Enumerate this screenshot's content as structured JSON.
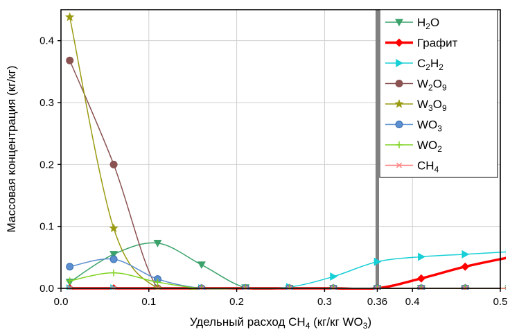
{
  "chart_data": {
    "type": "line",
    "title": "",
    "xlabel": {
      "main": "Удельный расход CH",
      "sub1": "4",
      "mid": " (кг/кг WO",
      "sub2": "3",
      "end": ")"
    },
    "ylabel": "Массовая концентрация (кг/кг)",
    "xlim": [
      0.0,
      0.5
    ],
    "ylim": [
      0.0,
      0.45
    ],
    "x_ticks": [
      {
        "value": 0.0,
        "label": "0.0"
      },
      {
        "value": 0.1,
        "label": "0.1"
      },
      {
        "value": 0.2,
        "label": "0.2"
      },
      {
        "value": 0.3,
        "label": "0.3"
      },
      {
        "value": 0.36,
        "label": "0.36"
      },
      {
        "value": 0.4,
        "label": "0.4"
      },
      {
        "value": 0.5,
        "label": "0.5"
      }
    ],
    "y_ticks": [
      {
        "value": 0.0,
        "label": "0.0"
      },
      {
        "value": 0.1,
        "label": "0.1"
      },
      {
        "value": 0.2,
        "label": "0.2"
      },
      {
        "value": 0.3,
        "label": "0.3"
      },
      {
        "value": 0.4,
        "label": "0.4"
      }
    ],
    "grid": true,
    "vertical_marker": {
      "x": 0.36,
      "color": "#808080"
    },
    "legend_position": "top-right",
    "series": [
      {
        "name": "H2O",
        "legend": {
          "base": "H",
          "sub": "2",
          "tail": "O"
        },
        "color": "#3aa26a",
        "marker": "triangle-down",
        "line_width": 1.5,
        "x": [
          0.01,
          0.06,
          0.11,
          0.16,
          0.21,
          0.26,
          0.31,
          0.36,
          0.41,
          0.46,
          0.51
        ],
        "y": [
          0.01,
          0.055,
          0.073,
          0.038,
          0.001,
          0.0,
          0.0,
          0.0,
          0.0,
          0.0,
          0.0
        ]
      },
      {
        "name": "Графит",
        "legend": {
          "base": "Графит",
          "sub": "",
          "tail": ""
        },
        "color": "#ff0000",
        "marker": "diamond",
        "line_width": 3.5,
        "x": [
          0.01,
          0.06,
          0.11,
          0.16,
          0.21,
          0.26,
          0.31,
          0.36,
          0.41,
          0.46,
          0.51
        ],
        "y": [
          0.0,
          0.0,
          0.0,
          0.0,
          0.0,
          0.0,
          0.0,
          0.0,
          0.016,
          0.035,
          0.05
        ]
      },
      {
        "name": "C2H2",
        "legend": {
          "base": "C",
          "sub": "2",
          "tail": "H",
          "sub2": "2"
        },
        "color": "#17cfd6",
        "marker": "triangle-right",
        "line_width": 1.5,
        "x": [
          0.01,
          0.06,
          0.11,
          0.16,
          0.21,
          0.26,
          0.31,
          0.36,
          0.41,
          0.46,
          0.51
        ],
        "y": [
          0.0,
          0.0,
          0.0,
          0.0,
          0.0,
          0.002,
          0.019,
          0.043,
          0.051,
          0.055,
          0.059
        ]
      },
      {
        "name": "W2O9",
        "legend": {
          "base": "W",
          "sub": "2",
          "tail": "O",
          "sub2": "9"
        },
        "color": "#8b5252",
        "marker": "circle",
        "line_width": 1.5,
        "x": [
          0.01,
          0.06,
          0.11,
          0.16,
          0.21,
          0.26,
          0.31,
          0.36,
          0.41,
          0.46,
          0.51
        ],
        "y": [
          0.368,
          0.2,
          0.0,
          0.0,
          0.0,
          0.0,
          0.0,
          0.0,
          0.0,
          0.0,
          0.0
        ]
      },
      {
        "name": "W3O9",
        "legend": {
          "base": "W",
          "sub": "3",
          "tail": "O",
          "sub2": "9"
        },
        "color": "#9a9a10",
        "marker": "star",
        "line_width": 1.5,
        "x": [
          0.01,
          0.06,
          0.11,
          0.16,
          0.21,
          0.26,
          0.31,
          0.36,
          0.41,
          0.46,
          0.51
        ],
        "y": [
          0.438,
          0.097,
          0.0,
          0.0,
          0.0,
          0.0,
          0.0,
          0.0,
          0.0,
          0.0,
          0.0
        ]
      },
      {
        "name": "WO3",
        "legend": {
          "base": "WO",
          "sub": "3",
          "tail": ""
        },
        "color": "#5b8fd0",
        "marker": "circle-filled",
        "line_width": 1.5,
        "x": [
          0.01,
          0.06,
          0.11,
          0.16,
          0.21,
          0.26,
          0.31,
          0.36,
          0.41,
          0.46,
          0.51
        ],
        "y": [
          0.035,
          0.047,
          0.015,
          0.0,
          0.0,
          0.0,
          0.0,
          0.0,
          0.0,
          0.0,
          0.0
        ]
      },
      {
        "name": "WO2",
        "legend": {
          "base": "WO",
          "sub": "2",
          "tail": ""
        },
        "color": "#7ed321",
        "marker": "plus",
        "line_width": 1.5,
        "x": [
          0.01,
          0.06,
          0.11,
          0.16,
          0.21,
          0.26,
          0.31,
          0.36,
          0.41,
          0.46,
          0.51
        ],
        "y": [
          0.012,
          0.025,
          0.01,
          0.0,
          0.0,
          0.0,
          0.0,
          0.0,
          0.0,
          0.0,
          0.0
        ]
      },
      {
        "name": "CH4",
        "legend": {
          "base": "CH",
          "sub": "4",
          "tail": ""
        },
        "color": "#ff7f7f",
        "marker": "asterisk",
        "line_width": 1.5,
        "x": [
          0.01,
          0.06,
          0.11,
          0.16,
          0.21,
          0.26,
          0.31,
          0.36,
          0.41,
          0.46,
          0.51
        ],
        "y": [
          0.0,
          0.0,
          0.0,
          0.0,
          0.0,
          0.0,
          0.0,
          0.0,
          0.0,
          0.0,
          0.0
        ]
      }
    ]
  }
}
